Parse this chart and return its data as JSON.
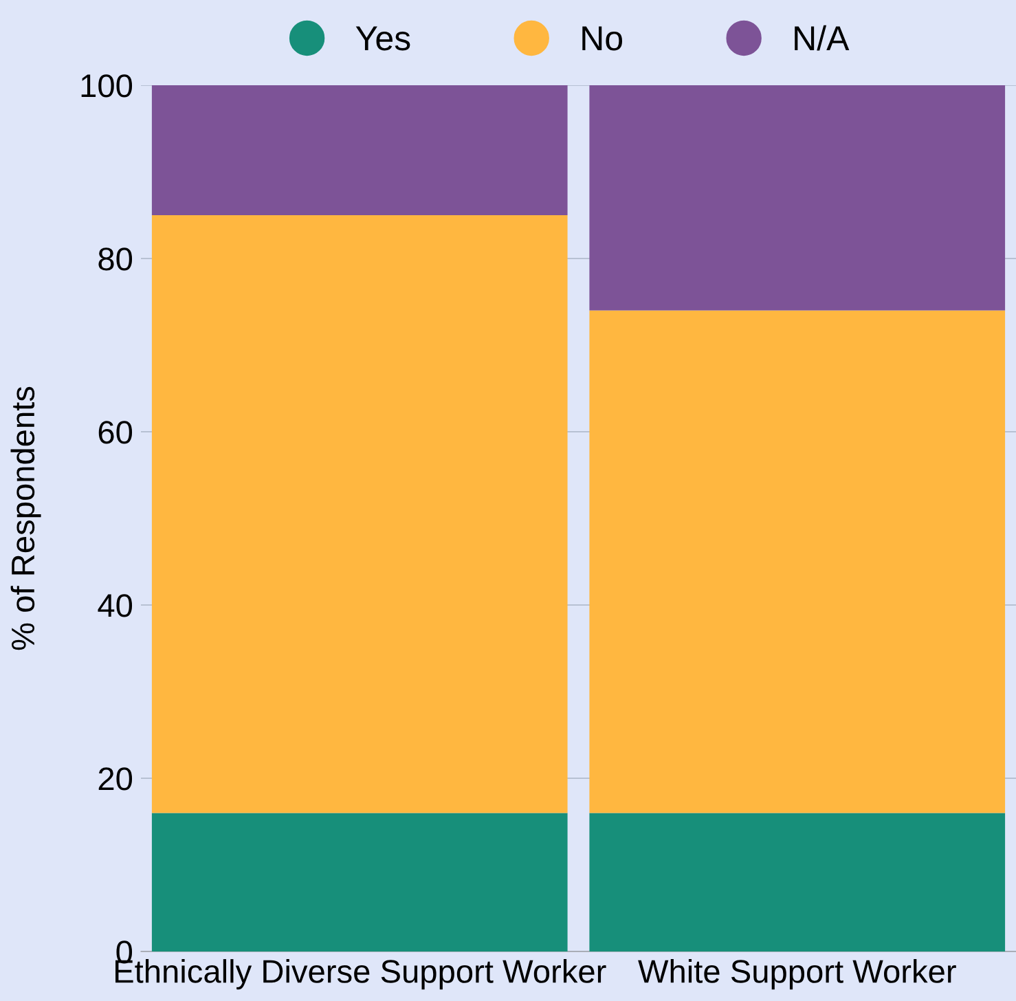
{
  "chart_data": {
    "type": "bar",
    "stacked": true,
    "ylabel": "% of Respondents",
    "categories": [
      "Ethnically Diverse Support Worker",
      "White Support Worker"
    ],
    "series": [
      {
        "name": "Yes",
        "color": "#178f7a",
        "values": [
          16,
          16
        ]
      },
      {
        "name": "No",
        "color": "#ffb740",
        "values": [
          69,
          58
        ]
      },
      {
        "name": "N/A",
        "color": "#7d5397",
        "values": [
          15,
          26
        ]
      }
    ],
    "ylim": [
      0,
      100
    ],
    "yticks": [
      0,
      20,
      40,
      60,
      80,
      100
    ],
    "grid": "y",
    "legend": "top",
    "marker": "circle"
  }
}
